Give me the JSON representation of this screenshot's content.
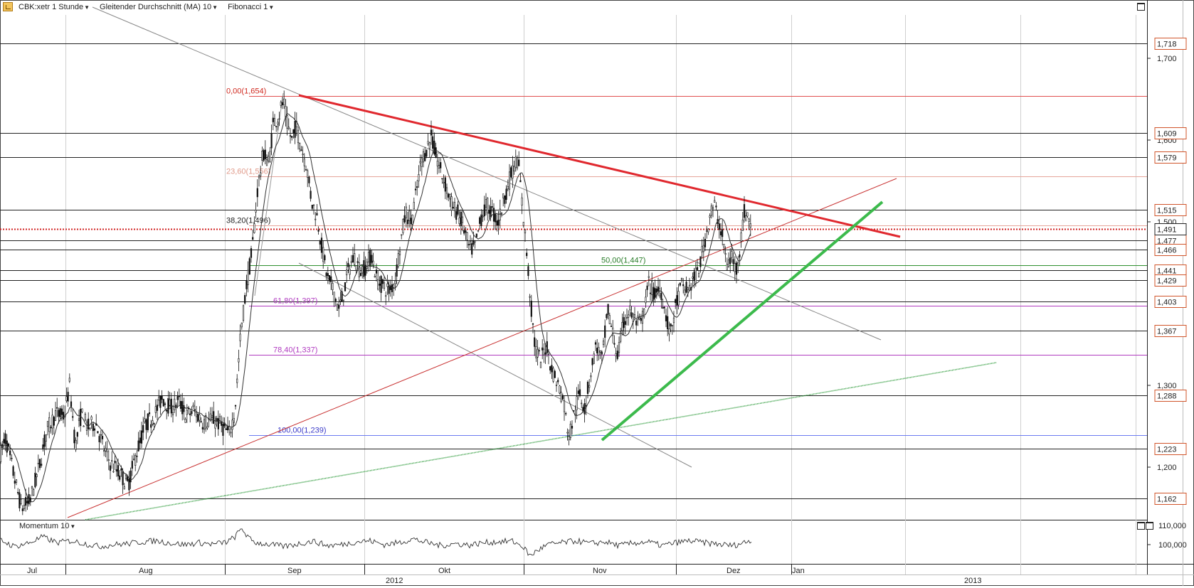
{
  "toolbar": {
    "symbol": "CBK:xetr 1 Stunde",
    "indicator": "Gleitender Durchschnitt (MA) 10",
    "drawing": "Fibonacci 1"
  },
  "momentum": {
    "label": "Momentum 10",
    "ticks": [
      "110,000",
      "100,000"
    ]
  },
  "colors": {
    "candle": "#111111",
    "ma": "#333333",
    "fib_red": "#e05050",
    "fib_green": "#2f8f2f",
    "fib_purple": "#b03ac0",
    "trend_red": "#e0282e",
    "trend_green": "#3cba4c",
    "support_green": "#2e9b3b",
    "price_dotted": "#d02020",
    "badge": "#d0542a"
  },
  "chart_data": {
    "type": "candlestick",
    "ylim": [
      1.14,
      1.75
    ],
    "ytick_labels": [
      "1,700",
      "1,600",
      "1,500",
      "1,300",
      "1,200"
    ],
    "xtick_labels": [
      "Jul",
      "Aug",
      "Sep",
      "Okt",
      "Nov",
      "Dez",
      "Jan"
    ],
    "years": [
      "2012",
      "2013"
    ],
    "horizontal_levels": [
      1.718,
      1.609,
      1.579,
      1.515,
      1.477,
      1.466,
      1.441,
      1.429,
      1.403,
      1.367,
      1.288,
      1.223,
      1.162
    ],
    "level_labels": [
      "1,718",
      "1,609",
      "1,579",
      "1,515",
      "1,477",
      "1,466",
      "1,441",
      "1,429",
      "1,403",
      "1,367",
      "1,288",
      "1,223",
      "1,162"
    ],
    "current_price": 1.491,
    "current_price_label": "1,491",
    "fibonacci": [
      {
        "label": "0,00(1,654)",
        "value": 1.654
      },
      {
        "label": "23,60(1,556)",
        "value": 1.556
      },
      {
        "label": "38,20(1,496)",
        "value": 1.496
      },
      {
        "label": "50,00(1,447)",
        "value": 1.447
      },
      {
        "label": "61,80(1,397)",
        "value": 1.397
      },
      {
        "label": "78,40(1,337)",
        "value": 1.337
      },
      {
        "label": "100,00(1,239)",
        "value": 1.239
      }
    ],
    "price_path": [
      [
        0,
        1.215
      ],
      [
        8,
        1.235
      ],
      [
        22,
        1.18
      ],
      [
        30,
        1.15
      ],
      [
        42,
        1.158
      ],
      [
        55,
        1.2
      ],
      [
        66,
        1.245
      ],
      [
        78,
        1.265
      ],
      [
        90,
        1.262
      ],
      [
        98,
        1.3
      ],
      [
        106,
        1.225
      ],
      [
        114,
        1.265
      ],
      [
        124,
        1.248
      ],
      [
        134,
        1.255
      ],
      [
        145,
        1.225
      ],
      [
        155,
        1.205
      ],
      [
        168,
        1.192
      ],
      [
        180,
        1.178
      ],
      [
        192,
        1.218
      ],
      [
        204,
        1.252
      ],
      [
        216,
        1.262
      ],
      [
        228,
        1.285
      ],
      [
        240,
        1.272
      ],
      [
        252,
        1.28
      ],
      [
        262,
        1.262
      ],
      [
        272,
        1.27
      ],
      [
        286,
        1.255
      ],
      [
        300,
        1.258
      ],
      [
        312,
        1.25
      ],
      [
        322,
        1.24
      ],
      [
        330,
        1.268
      ],
      [
        338,
        1.36
      ],
      [
        346,
        1.42
      ],
      [
        354,
        1.462
      ],
      [
        362,
        1.54
      ],
      [
        370,
        1.585
      ],
      [
        378,
        1.572
      ],
      [
        384,
        1.62
      ],
      [
        392,
        1.63
      ],
      [
        398,
        1.648
      ],
      [
        404,
        1.618
      ],
      [
        410,
        1.6
      ],
      [
        416,
        1.618
      ],
      [
        422,
        1.595
      ],
      [
        430,
        1.572
      ],
      [
        438,
        1.525
      ],
      [
        446,
        1.505
      ],
      [
        452,
        1.47
      ],
      [
        460,
        1.432
      ],
      [
        468,
        1.418
      ],
      [
        476,
        1.392
      ],
      [
        482,
        1.41
      ],
      [
        490,
        1.442
      ],
      [
        498,
        1.458
      ],
      [
        506,
        1.44
      ],
      [
        514,
        1.445
      ],
      [
        522,
        1.46
      ],
      [
        530,
        1.428
      ],
      [
        540,
        1.42
      ],
      [
        548,
        1.415
      ],
      [
        556,
        1.432
      ],
      [
        562,
        1.47
      ],
      [
        570,
        1.512
      ],
      [
        578,
        1.5
      ],
      [
        586,
        1.54
      ],
      [
        592,
        1.575
      ],
      [
        600,
        1.59
      ],
      [
        606,
        1.605
      ],
      [
        612,
        1.582
      ],
      [
        620,
        1.56
      ],
      [
        628,
        1.54
      ],
      [
        636,
        1.518
      ],
      [
        644,
        1.51
      ],
      [
        652,
        1.492
      ],
      [
        660,
        1.465
      ],
      [
        668,
        1.47
      ],
      [
        676,
        1.505
      ],
      [
        684,
        1.52
      ],
      [
        692,
        1.512
      ],
      [
        700,
        1.498
      ],
      [
        708,
        1.528
      ],
      [
        714,
        1.545
      ],
      [
        722,
        1.568
      ],
      [
        728,
        1.578
      ],
      [
        734,
        1.52
      ],
      [
        740,
        1.465
      ],
      [
        746,
        1.4
      ],
      [
        752,
        1.345
      ],
      [
        760,
        1.33
      ],
      [
        768,
        1.35
      ],
      [
        776,
        1.318
      ],
      [
        784,
        1.302
      ],
      [
        792,
        1.282
      ],
      [
        796,
        1.255
      ],
      [
        800,
        1.238
      ],
      [
        806,
        1.262
      ],
      [
        814,
        1.29
      ],
      [
        822,
        1.272
      ],
      [
        830,
        1.315
      ],
      [
        838,
        1.35
      ],
      [
        846,
        1.33
      ],
      [
        854,
        1.392
      ],
      [
        860,
        1.368
      ],
      [
        868,
        1.335
      ],
      [
        876,
        1.375
      ],
      [
        884,
        1.392
      ],
      [
        892,
        1.38
      ],
      [
        900,
        1.372
      ],
      [
        906,
        1.395
      ],
      [
        912,
        1.425
      ],
      [
        920,
        1.41
      ],
      [
        928,
        1.42
      ],
      [
        936,
        1.385
      ],
      [
        942,
        1.362
      ],
      [
        950,
        1.398
      ],
      [
        958,
        1.422
      ],
      [
        966,
        1.415
      ],
      [
        974,
        1.428
      ],
      [
        982,
        1.44
      ],
      [
        990,
        1.475
      ],
      [
        998,
        1.51
      ],
      [
        1004,
        1.52
      ],
      [
        1010,
        1.5
      ],
      [
        1016,
        1.478
      ],
      [
        1022,
        1.445
      ],
      [
        1028,
        1.458
      ],
      [
        1034,
        1.44
      ],
      [
        1040,
        1.47
      ],
      [
        1046,
        1.512
      ],
      [
        1052,
        1.505
      ],
      [
        1057,
        1.491
      ]
    ],
    "momentum_path": [
      [
        0,
        102.5
      ],
      [
        20,
        99.0
      ],
      [
        40,
        100.8
      ],
      [
        60,
        104.0
      ],
      [
        80,
        101.0
      ],
      [
        100,
        102.0
      ],
      [
        120,
        100.5
      ],
      [
        140,
        99.0
      ],
      [
        160,
        100.0
      ],
      [
        180,
        100.5
      ],
      [
        200,
        101.5
      ],
      [
        220,
        102.0
      ],
      [
        240,
        100.8
      ],
      [
        260,
        100.0
      ],
      [
        280,
        101.0
      ],
      [
        300,
        100.2
      ],
      [
        320,
        101.5
      ],
      [
        330,
        104.0
      ],
      [
        340,
        108.5
      ],
      [
        350,
        103.0
      ],
      [
        360,
        101.0
      ],
      [
        380,
        100.0
      ],
      [
        400,
        99.0
      ],
      [
        420,
        100.5
      ],
      [
        440,
        101.8
      ],
      [
        460,
        99.5
      ],
      [
        480,
        100.0
      ],
      [
        500,
        101.5
      ],
      [
        520,
        102.0
      ],
      [
        540,
        100.0
      ],
      [
        560,
        101.0
      ],
      [
        580,
        103.0
      ],
      [
        600,
        101.0
      ],
      [
        620,
        99.5
      ],
      [
        640,
        100.5
      ],
      [
        660,
        99.8
      ],
      [
        680,
        101.0
      ],
      [
        700,
        101.5
      ],
      [
        720,
        101.8
      ],
      [
        735,
        99.0
      ],
      [
        745,
        94.0
      ],
      [
        755,
        97.0
      ],
      [
        770,
        100.0
      ],
      [
        790,
        101.0
      ],
      [
        810,
        102.0
      ],
      [
        830,
        100.5
      ],
      [
        850,
        101.5
      ],
      [
        870,
        99.5
      ],
      [
        890,
        100.8
      ],
      [
        910,
        101.5
      ],
      [
        930,
        99.5
      ],
      [
        950,
        101.0
      ],
      [
        970,
        102.0
      ],
      [
        990,
        101.0
      ],
      [
        1010,
        100.2
      ],
      [
        1030,
        99.5
      ],
      [
        1045,
        101.0
      ],
      [
        1057,
        102.5
      ]
    ]
  }
}
